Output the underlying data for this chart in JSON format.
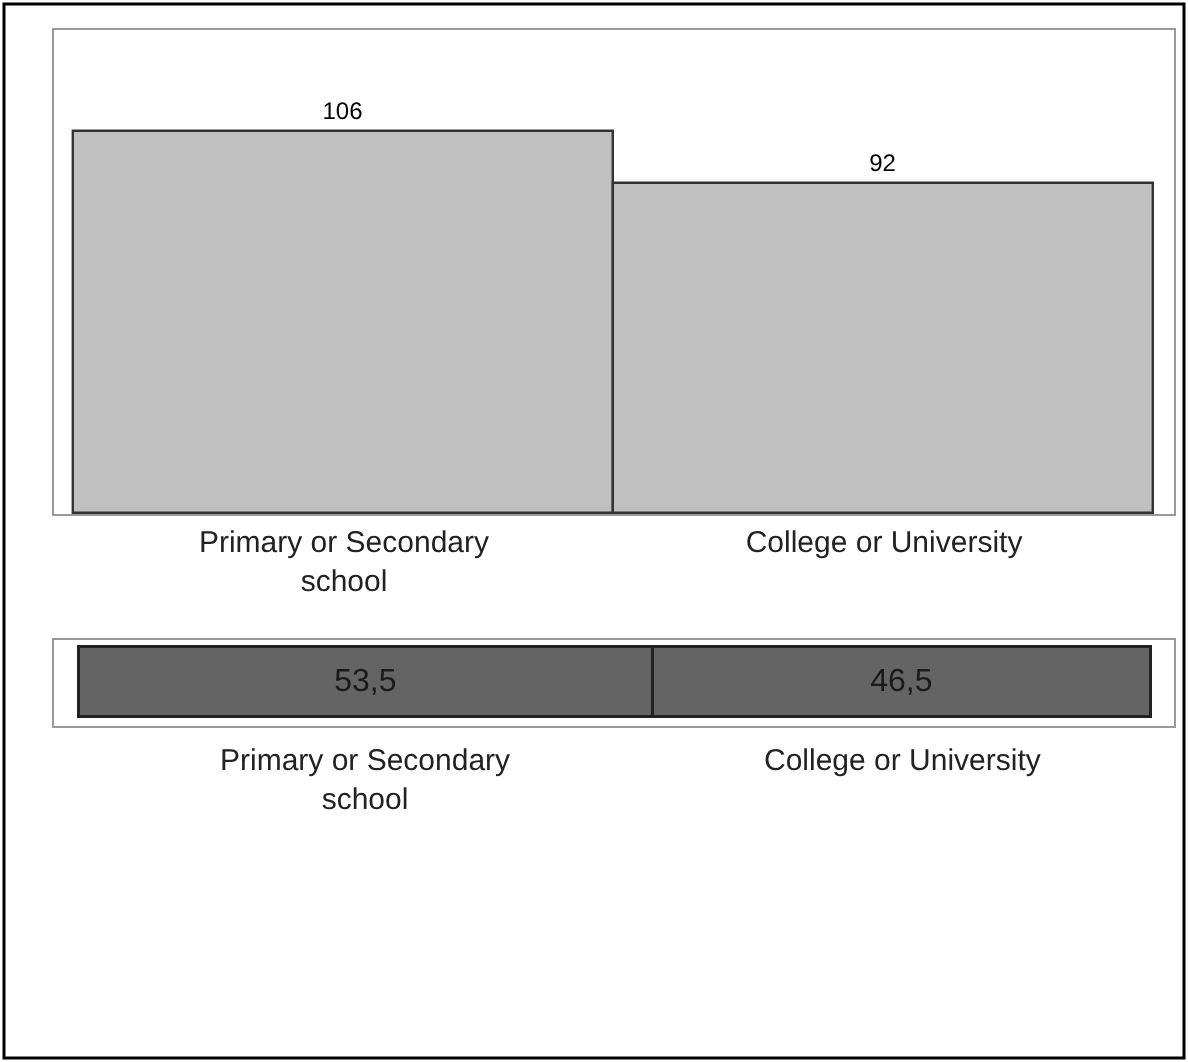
{
  "chart_data": [
    {
      "type": "bar",
      "categories": [
        "Primary or Secondary school",
        "College or University"
      ],
      "values": [
        106,
        92
      ],
      "color": "#c0c0c0",
      "data_labels": true,
      "tick_labels": "x"
    },
    {
      "type": "bar",
      "orientation": "horizontal",
      "stacked": true,
      "categories": [
        null
      ],
      "tick_labels": false,
      "series": [
        {
          "name": "Primary or Secondary school",
          "color": "#646464",
          "values": [
            53.5
          ],
          "value_labels": [
            "53,5"
          ]
        },
        {
          "name": "College or University",
          "color": "#646464",
          "values": [
            46.5
          ],
          "value_labels": [
            "46,5"
          ]
        }
      ]
    }
  ]
}
